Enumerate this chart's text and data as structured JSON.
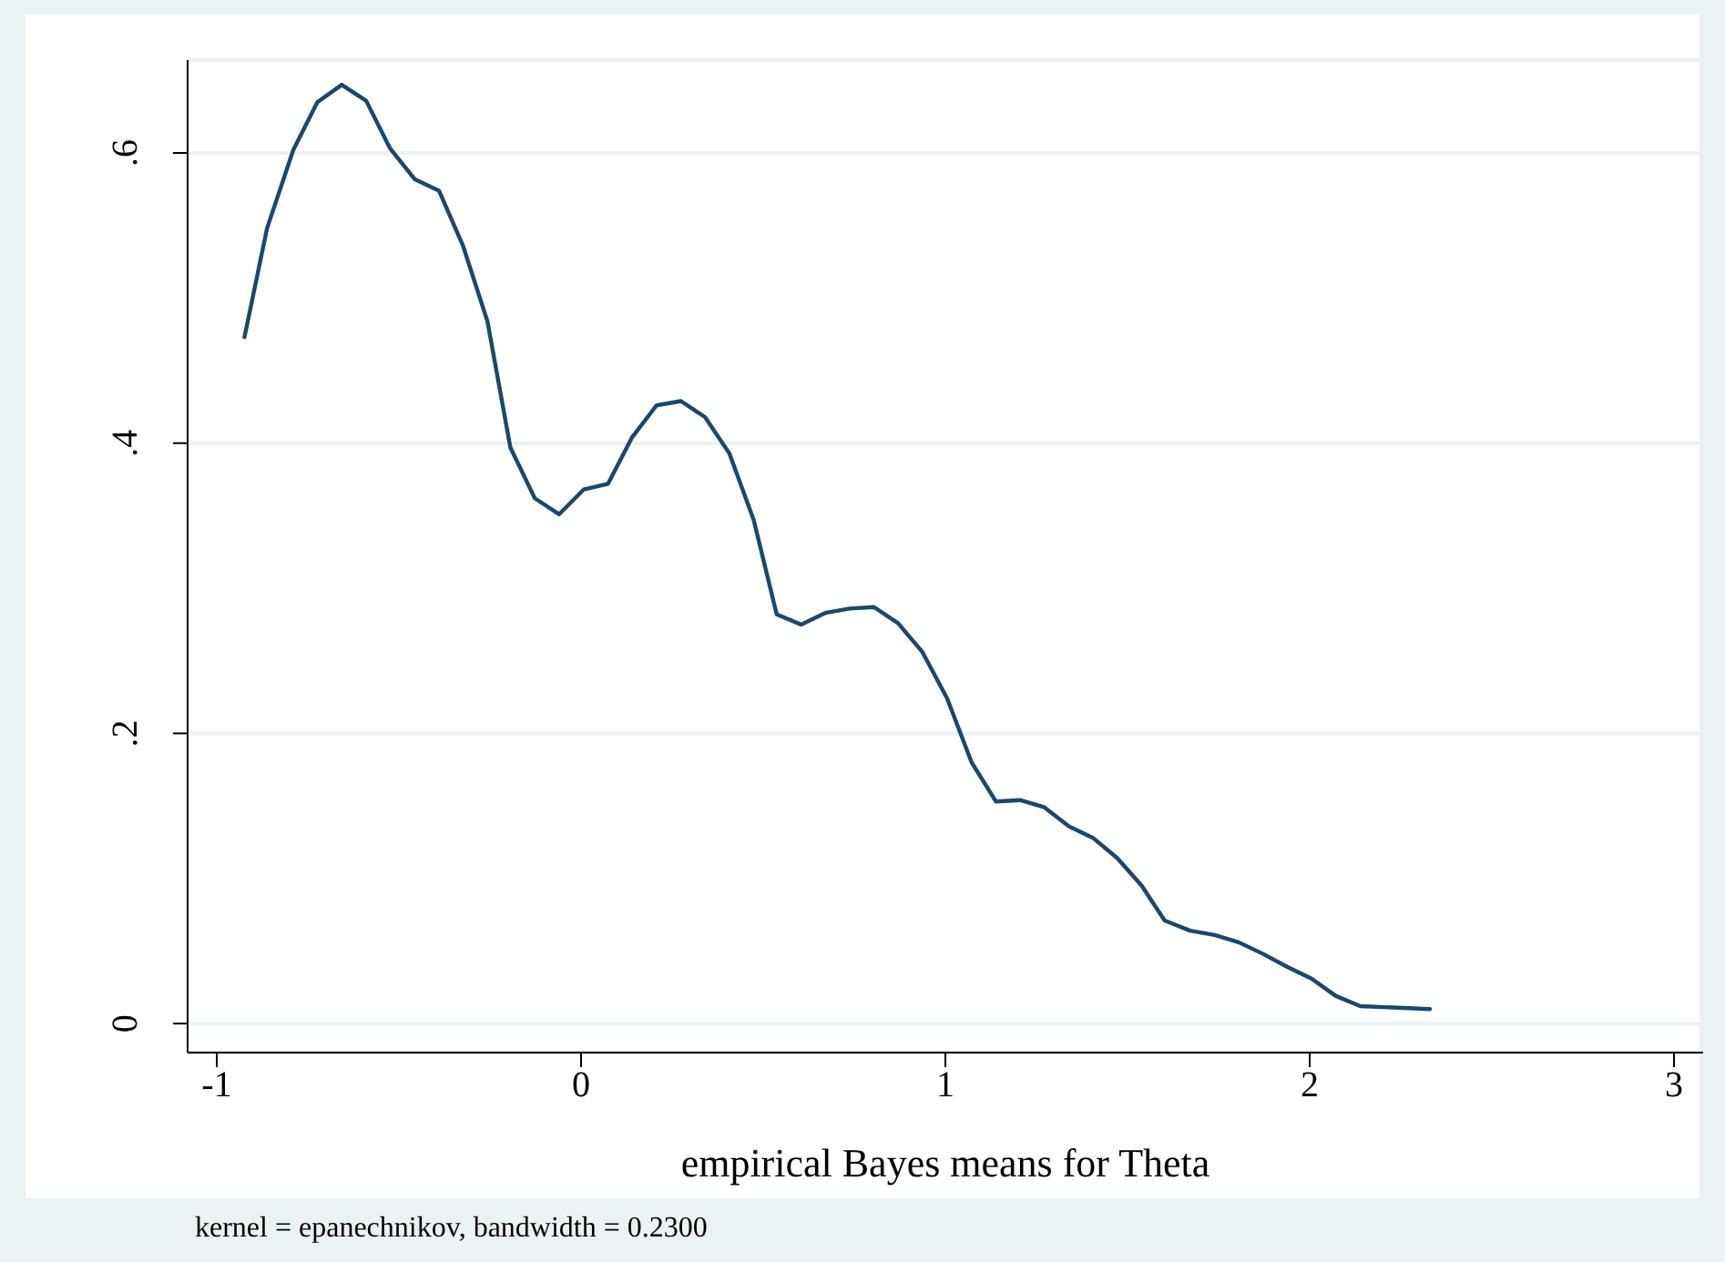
{
  "chart_data": {
    "type": "line",
    "xlabel": "empirical Bayes means for Theta",
    "annotations": [
      "kernel = epanechnikov, bandwidth = 0.2300"
    ],
    "x": [
      -0.924,
      -0.862,
      -0.79,
      -0.724,
      -0.657,
      -0.59,
      -0.524,
      -0.457,
      -0.39,
      -0.324,
      -0.257,
      -0.194,
      -0.127,
      -0.06,
      0.007,
      0.074,
      0.14,
      0.207,
      0.274,
      0.34,
      0.407,
      0.474,
      0.537,
      0.604,
      0.67,
      0.737,
      0.804,
      0.87,
      0.937,
      1.005,
      1.072,
      1.139,
      1.205,
      1.272,
      1.339,
      1.405,
      1.472,
      1.539,
      1.602,
      1.672,
      1.739,
      1.805,
      1.872,
      1.939,
      2.005,
      2.072,
      2.139,
      2.33
    ],
    "series": [
      {
        "color": "#1a476f",
        "values": [
          0.473,
          0.548,
          0.602,
          0.635,
          0.647,
          0.636,
          0.603,
          0.582,
          0.574,
          0.536,
          0.484,
          0.397,
          0.362,
          0.351,
          0.368,
          0.372,
          0.404,
          0.426,
          0.429,
          0.418,
          0.393,
          0.347,
          0.282,
          0.275,
          0.283,
          0.286,
          0.287,
          0.276,
          0.256,
          0.224,
          0.18,
          0.153,
          0.154,
          0.149,
          0.136,
          0.128,
          0.114,
          0.095,
          0.071,
          0.064,
          0.061,
          0.056,
          0.048,
          0.039,
          0.031,
          0.019,
          0.012,
          0.01
        ]
      }
    ],
    "xlim": [
      -1.08,
      3.08
    ],
    "xticks": [
      -1,
      0,
      1,
      2,
      3
    ],
    "ylim": [
      -0.02,
      0.664
    ],
    "yticks": [
      0,
      {
        "value": 0.2,
        "label": ".2"
      },
      {
        "value": 0.4,
        "label": ".4"
      },
      {
        "value": 0.6,
        "label": ".6"
      }
    ],
    "grid": "y",
    "legend": false,
    "marker": "none",
    "line_style": "solid"
  }
}
